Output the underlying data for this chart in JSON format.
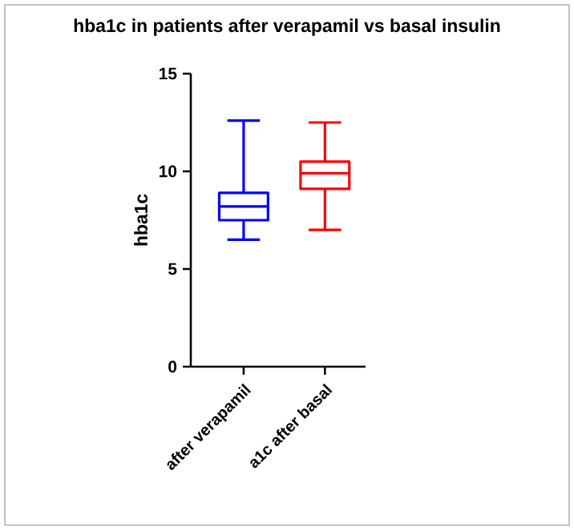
{
  "chart_data": {
    "type": "box",
    "title": "hba1c in patients after verapamil vs basal insulin",
    "ylabel": "hba1c",
    "categories": [
      "after verapamil",
      "a1c after basal"
    ],
    "colors": [
      "#0000ff",
      "#ff0000"
    ],
    "boxes": [
      {
        "low": 6.5,
        "q1": 7.5,
        "median": 8.2,
        "q3": 8.9,
        "high": 12.6
      },
      {
        "low": 7.0,
        "q1": 9.1,
        "median": 9.9,
        "q3": 10.5,
        "high": 12.5
      }
    ],
    "ylim": [
      0,
      15
    ],
    "yticks": [
      0,
      5,
      10,
      15
    ]
  }
}
